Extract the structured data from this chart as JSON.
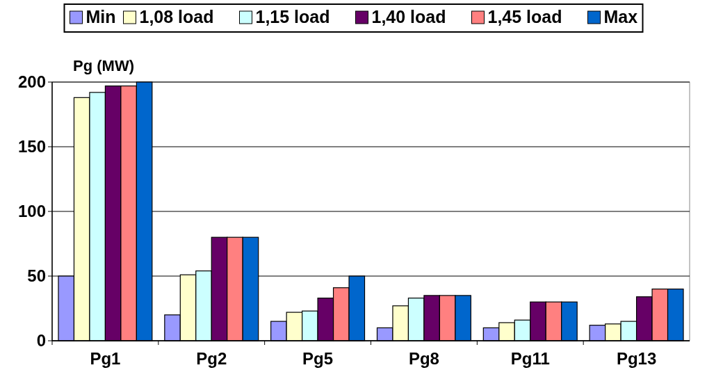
{
  "chart_data": {
    "type": "bar",
    "ylabel": "Pg (MW)",
    "categories": [
      "Pg1",
      "Pg2",
      "Pg5",
      "Pg8",
      "Pg11",
      "Pg13"
    ],
    "series": [
      {
        "name": "Min",
        "color": "#9999ff",
        "values": [
          50,
          20,
          15,
          10,
          10,
          12
        ]
      },
      {
        "name": "1,08 load",
        "color": "#ffffcc",
        "values": [
          188,
          51,
          22,
          27,
          14,
          13
        ]
      },
      {
        "name": "1,15 load",
        "color": "#ccffff",
        "values": [
          192,
          54,
          23,
          33,
          16,
          15
        ]
      },
      {
        "name": "1,40 load",
        "color": "#660066",
        "values": [
          197,
          80,
          33,
          35,
          30,
          34
        ]
      },
      {
        "name": "1,45 load",
        "color": "#ff8080",
        "values": [
          197,
          80,
          41,
          35,
          30,
          40
        ]
      },
      {
        "name": "Max",
        "color": "#0066cc",
        "values": [
          200,
          80,
          50,
          35,
          30,
          40
        ]
      }
    ],
    "ylim": [
      0,
      200
    ],
    "yticks": [
      0,
      50,
      100,
      150,
      200
    ],
    "grid": "y",
    "legend": "top"
  }
}
